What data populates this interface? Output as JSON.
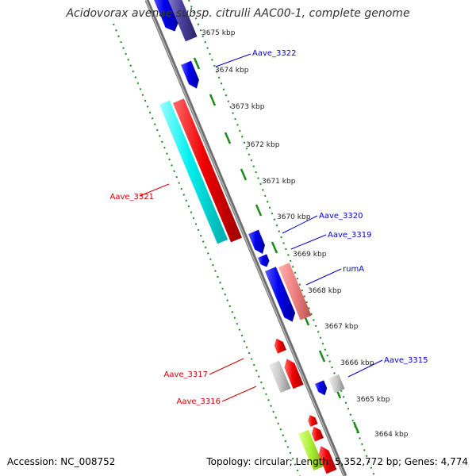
{
  "header": {
    "title": "Acidovorax avenae subsp. citrulli AAC00-1, complete genome"
  },
  "footer": {
    "accession": "Accession: NC_008752",
    "summary": "Topology: circular; Length: 5,352,772 bp; Genes: 4,774"
  },
  "colors": {
    "backbone": "#8c8c8c",
    "ticks": "#1b8a1b",
    "forward_gene_label": "#0000cc",
    "reverse_gene_label": "#cc0000"
  },
  "ticks": [
    "3675 kbp",
    "3674 kbp",
    "3673 kbp",
    "3672 kbp",
    "3671 kbp",
    "3670 kbp",
    "3669 kbp",
    "3668 kbp",
    "3667 kbp",
    "3666 kbp",
    "3665 kbp",
    "3664 kbp"
  ],
  "genes": [
    {
      "name": "Aave_3322",
      "strand": "forward"
    },
    {
      "name": "Aave_3321",
      "strand": "reverse"
    },
    {
      "name": "Aave_3320",
      "strand": "forward"
    },
    {
      "name": "Aave_3319",
      "strand": "forward"
    },
    {
      "name": "rumA",
      "strand": "forward"
    },
    {
      "name": "Aave_3317",
      "strand": "reverse"
    },
    {
      "name": "Aave_3316",
      "strand": "reverse"
    },
    {
      "name": "Aave_3315",
      "strand": "forward"
    }
  ]
}
